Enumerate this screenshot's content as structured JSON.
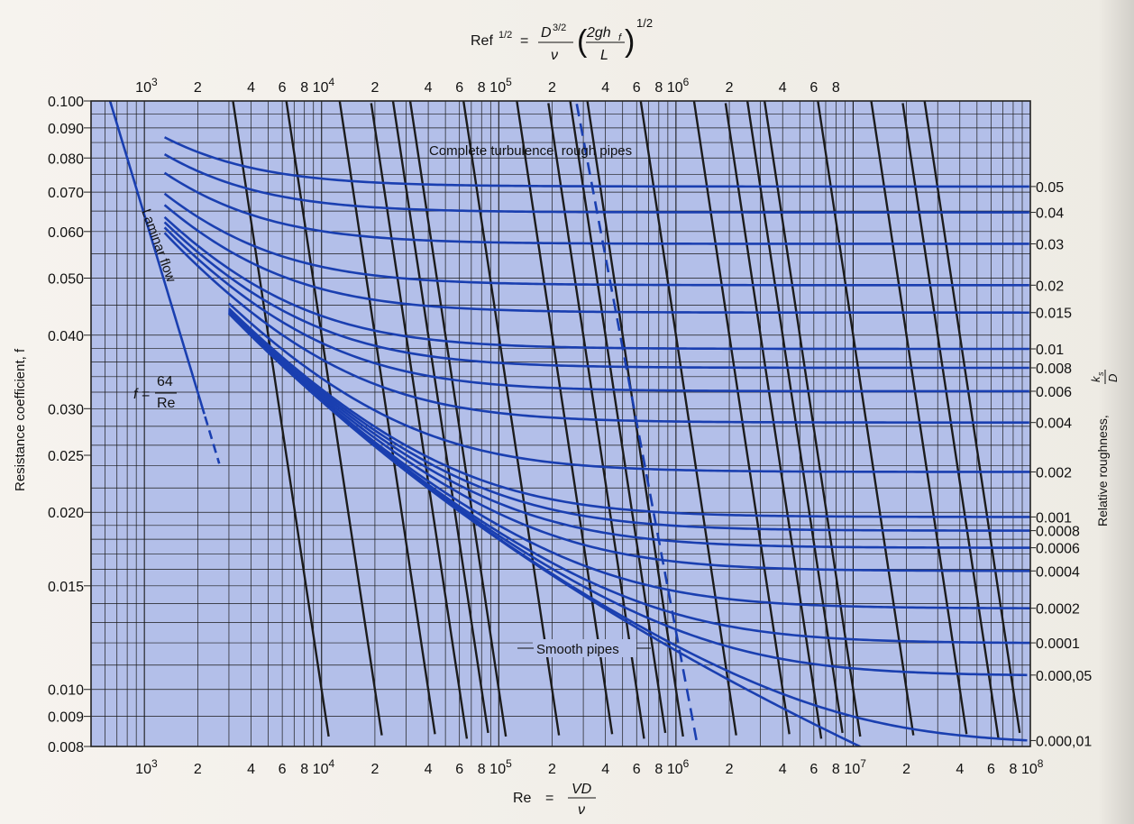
{
  "chart_data": {
    "type": "line",
    "title": "",
    "top_formula": {
      "lhs": "Ref",
      "lhs_exp": "1/2",
      "num1": "D",
      "num1_exp": "3/2",
      "den1": "ν",
      "num2": "2gh",
      "num2_sub": "f",
      "den2": "L",
      "outer_exp": "1/2"
    },
    "xlabel": {
      "lhs": "Re",
      "num": "VD",
      "den": "ν"
    },
    "ylabel": "Resistance coefficient, f",
    "ylabel_right": {
      "text": "Relative roughness,",
      "num": "k",
      "num_sub": "s",
      "den": "D"
    },
    "xscale": "log",
    "yscale": "log",
    "xlim": [
      500,
      100000000
    ],
    "ylim": [
      0.008,
      0.1
    ],
    "grid": true,
    "background": "#b3bfe9",
    "curve_color": "#1a3fb0",
    "line_color": "#1c1c1c",
    "y_ticks": [
      {
        "value": 0.1,
        "label": "0.100"
      },
      {
        "value": 0.09,
        "label": "0.090"
      },
      {
        "value": 0.08,
        "label": "0.080"
      },
      {
        "value": 0.07,
        "label": "0.070"
      },
      {
        "value": 0.06,
        "label": "0.060"
      },
      {
        "value": 0.05,
        "label": "0.050"
      },
      {
        "value": 0.04,
        "label": "0.040"
      },
      {
        "value": 0.03,
        "label": "0.030"
      },
      {
        "value": 0.025,
        "label": "0.025"
      },
      {
        "value": 0.02,
        "label": "0.020"
      },
      {
        "value": 0.015,
        "label": "0.015"
      },
      {
        "value": 0.01,
        "label": "0.010"
      },
      {
        "value": 0.009,
        "label": "0.009"
      },
      {
        "value": 0.008,
        "label": "0.008"
      }
    ],
    "x_ticks": [
      {
        "value": 1000,
        "mant": "10",
        "exp": "3"
      },
      {
        "value": 2000,
        "mant": "2",
        "exp": ""
      },
      {
        "value": 4000,
        "mant": "4",
        "exp": ""
      },
      {
        "value": 6000,
        "mant": "6",
        "exp": ""
      },
      {
        "value": 8000,
        "mant": "8",
        "exp": ""
      },
      {
        "value": 10000,
        "mant": "10",
        "exp": "4"
      },
      {
        "value": 20000,
        "mant": "2",
        "exp": ""
      },
      {
        "value": 40000,
        "mant": "4",
        "exp": ""
      },
      {
        "value": 60000,
        "mant": "6",
        "exp": ""
      },
      {
        "value": 80000,
        "mant": "8",
        "exp": ""
      },
      {
        "value": 100000,
        "mant": "10",
        "exp": "5"
      },
      {
        "value": 200000,
        "mant": "2",
        "exp": ""
      },
      {
        "value": 400000,
        "mant": "4",
        "exp": ""
      },
      {
        "value": 600000,
        "mant": "6",
        "exp": ""
      },
      {
        "value": 800000,
        "mant": "8",
        "exp": ""
      },
      {
        "value": 1000000,
        "mant": "10",
        "exp": "6"
      },
      {
        "value": 2000000,
        "mant": "2",
        "exp": ""
      },
      {
        "value": 4000000,
        "mant": "4",
        "exp": ""
      },
      {
        "value": 6000000,
        "mant": "6",
        "exp": ""
      },
      {
        "value": 8000000,
        "mant": "8",
        "exp": ""
      },
      {
        "value": 10000000,
        "mant": "10",
        "exp": "7"
      },
      {
        "value": 20000000,
        "mant": "2",
        "exp": ""
      },
      {
        "value": 40000000,
        "mant": "4",
        "exp": ""
      },
      {
        "value": 60000000,
        "mant": "6",
        "exp": ""
      },
      {
        "value": 80000000,
        "mant": "8",
        "exp": ""
      },
      {
        "value": 100000000,
        "mant": "10",
        "exp": "8"
      }
    ],
    "top_ticks": [
      {
        "value": 1000,
        "mant": "10",
        "exp": "3"
      },
      {
        "value": 2000,
        "mant": "2",
        "exp": ""
      },
      {
        "value": 4000,
        "mant": "4",
        "exp": ""
      },
      {
        "value": 6000,
        "mant": "6",
        "exp": ""
      },
      {
        "value": 8000,
        "mant": "8",
        "exp": ""
      },
      {
        "value": 10000,
        "mant": "10",
        "exp": "4"
      },
      {
        "value": 20000,
        "mant": "2",
        "exp": ""
      },
      {
        "value": 40000,
        "mant": "4",
        "exp": ""
      },
      {
        "value": 60000,
        "mant": "6",
        "exp": ""
      },
      {
        "value": 80000,
        "mant": "8",
        "exp": ""
      },
      {
        "value": 100000,
        "mant": "10",
        "exp": "5"
      },
      {
        "value": 200000,
        "mant": "2",
        "exp": ""
      },
      {
        "value": 400000,
        "mant": "4",
        "exp": ""
      },
      {
        "value": 600000,
        "mant": "6",
        "exp": ""
      },
      {
        "value": 800000,
        "mant": "8",
        "exp": ""
      },
      {
        "value": 1000000,
        "mant": "10",
        "exp": "6"
      },
      {
        "value": 2000000,
        "mant": "2",
        "exp": ""
      },
      {
        "value": 4000000,
        "mant": "4",
        "exp": ""
      },
      {
        "value": 6000000,
        "mant": "6",
        "exp": ""
      },
      {
        "value": 8000000,
        "mant": "8",
        "exp": ""
      }
    ],
    "roughness_curves": [
      {
        "ks_D": 0.05,
        "label": "0.05"
      },
      {
        "ks_D": 0.04,
        "label": "0.04"
      },
      {
        "ks_D": 0.03,
        "label": "0.03"
      },
      {
        "ks_D": 0.02,
        "label": "0.02"
      },
      {
        "ks_D": 0.015,
        "label": "0.015"
      },
      {
        "ks_D": 0.01,
        "label": "0.01"
      },
      {
        "ks_D": 0.008,
        "label": "0.008"
      },
      {
        "ks_D": 0.006,
        "label": "0.006"
      },
      {
        "ks_D": 0.004,
        "label": "0.004"
      },
      {
        "ks_D": 0.002,
        "label": "0.002"
      },
      {
        "ks_D": 0.001,
        "label": "0.001"
      },
      {
        "ks_D": 0.0008,
        "label": "0.0008"
      },
      {
        "ks_D": 0.0006,
        "label": "0.0006"
      },
      {
        "ks_D": 0.0004,
        "label": "0.0004"
      },
      {
        "ks_D": 0.0002,
        "label": "0.0002"
      },
      {
        "ks_D": 0.0001,
        "label": "0.0001"
      },
      {
        "ks_D": 5e-05,
        "label": "0.000,05"
      },
      {
        "ks_D": 1e-05,
        "label": "0.000,01"
      }
    ],
    "ref_lines": [
      1000,
      2000,
      4000,
      6000,
      8000,
      10000,
      20000,
      40000,
      60000,
      80000,
      100000,
      200000,
      400000,
      600000,
      800000,
      1000000,
      2000000,
      4000000,
      6000000,
      8000000
    ],
    "laminar": {
      "label": "Laminar flow",
      "formula_lhs": "f",
      "formula_num": "64",
      "formula_den": "Re"
    },
    "annotations": {
      "complete_turbulence": "Complete turbulence, rough pipes",
      "smooth": "Smooth pipes"
    }
  }
}
